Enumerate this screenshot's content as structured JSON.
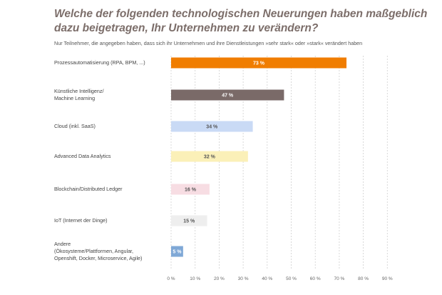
{
  "title": "Welche der folgenden technologischen Neuerungen haben maßgeblich dazu beigetragen, Ihr Unternehmen zu verändern?",
  "subtitle": "Nur Teilnehmer, die angegeben haben, dass sich ihr Unternehmen und ihre Dienstleistungen »sehr stark« oder »stark« verändert haben",
  "chart_data": {
    "type": "bar",
    "orientation": "horizontal",
    "categories": [
      "Prozessautomatisierung (RPA, BPM, ...)",
      "Künstliche Intelligenz/ Machine Learning",
      "Cloud (inkl. SaaS)",
      "Advanced Data Analytics",
      "Blockchain/Distributed Ledger",
      "IoT (Internet der Dinge)",
      "Andere (Ökosysteme/Plattformen, Angular, Openshift, Docker, Microservice, Agile)"
    ],
    "category_lines": [
      [
        "Prozessautomatisierung (RPA, BPM, ...)"
      ],
      [
        "Künstliche Intelligenz/",
        "Machine Learning"
      ],
      [
        "Cloud (inkl. SaaS)"
      ],
      [
        "Advanced Data Analytics"
      ],
      [
        "Blockchain/Distributed Ledger"
      ],
      [
        "IoT (Internet der Dinge)"
      ],
      [
        "Andere",
        "(Ökosysteme/Plattformen, Angular,",
        "Openshift, Docker, Microservice, Agile)"
      ]
    ],
    "values": [
      73,
      47,
      34,
      32,
      16,
      15,
      5
    ],
    "value_labels": [
      "73 %",
      "47 %",
      "34 %",
      "32 %",
      "16 %",
      "15 %",
      "5 %"
    ],
    "bar_colors": [
      "#f07d00",
      "#7a6a68",
      "#c9daf5",
      "#fbf0b8",
      "#f7dde3",
      "#eeeeee",
      "#7fa8d6"
    ],
    "label_colors": [
      "#ffffff",
      "#ffffff",
      "#555555",
      "#555555",
      "#555555",
      "#555555",
      "#ffffff"
    ],
    "xlim": [
      0,
      90
    ],
    "xticks": [
      0,
      10,
      20,
      30,
      40,
      50,
      60,
      70,
      80,
      90
    ],
    "xtick_labels": [
      "0 %",
      "10 %",
      "20 %",
      "30 %",
      "40 %",
      "50 %",
      "60 %",
      "70 %",
      "80 %",
      "90 %"
    ],
    "grid": "vertical-dashed"
  }
}
